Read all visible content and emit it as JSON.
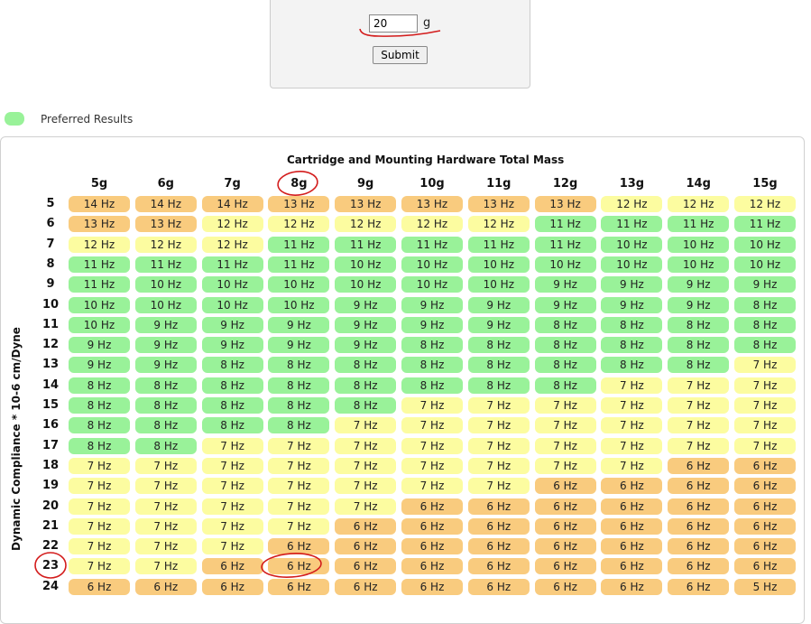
{
  "form": {
    "mass_value": "20",
    "unit": "g",
    "submit_label": "Submit"
  },
  "legend": {
    "label": "Preferred Results",
    "color": "#99f299"
  },
  "table": {
    "title": "Cartridge and Mounting Hardware Total Mass",
    "ylabel": "Dynamic Compliance * 10-6 cm/Dyne",
    "columns": [
      "5g",
      "6g",
      "7g",
      "8g",
      "9g",
      "10g",
      "11g",
      "12g",
      "13g",
      "14g",
      "15g"
    ],
    "rows": [
      {
        "label": "5",
        "values": [
          14,
          14,
          14,
          13,
          13,
          13,
          13,
          13,
          12,
          12,
          12
        ]
      },
      {
        "label": "6",
        "values": [
          13,
          13,
          12,
          12,
          12,
          12,
          12,
          11,
          11,
          11,
          11
        ]
      },
      {
        "label": "7",
        "values": [
          12,
          12,
          12,
          11,
          11,
          11,
          11,
          11,
          10,
          10,
          10
        ]
      },
      {
        "label": "8",
        "values": [
          11,
          11,
          11,
          11,
          10,
          10,
          10,
          10,
          10,
          10,
          10
        ]
      },
      {
        "label": "9",
        "values": [
          11,
          10,
          10,
          10,
          10,
          10,
          10,
          9,
          9,
          9,
          9
        ]
      },
      {
        "label": "10",
        "values": [
          10,
          10,
          10,
          10,
          9,
          9,
          9,
          9,
          9,
          9,
          8
        ]
      },
      {
        "label": "11",
        "values": [
          10,
          9,
          9,
          9,
          9,
          9,
          9,
          8,
          8,
          8,
          8
        ]
      },
      {
        "label": "12",
        "values": [
          9,
          9,
          9,
          9,
          9,
          8,
          8,
          8,
          8,
          8,
          8
        ]
      },
      {
        "label": "13",
        "values": [
          9,
          9,
          8,
          8,
          8,
          8,
          8,
          8,
          8,
          8,
          7
        ]
      },
      {
        "label": "14",
        "values": [
          8,
          8,
          8,
          8,
          8,
          8,
          8,
          8,
          7,
          7,
          7
        ]
      },
      {
        "label": "15",
        "values": [
          8,
          8,
          8,
          8,
          8,
          7,
          7,
          7,
          7,
          7,
          7
        ]
      },
      {
        "label": "16",
        "values": [
          8,
          8,
          8,
          8,
          7,
          7,
          7,
          7,
          7,
          7,
          7
        ]
      },
      {
        "label": "17",
        "values": [
          8,
          8,
          7,
          7,
          7,
          7,
          7,
          7,
          7,
          7,
          7
        ]
      },
      {
        "label": "18",
        "values": [
          7,
          7,
          7,
          7,
          7,
          7,
          7,
          7,
          7,
          6,
          6
        ]
      },
      {
        "label": "19",
        "values": [
          7,
          7,
          7,
          7,
          7,
          7,
          7,
          6,
          6,
          6,
          6
        ]
      },
      {
        "label": "20",
        "values": [
          7,
          7,
          7,
          7,
          7,
          6,
          6,
          6,
          6,
          6,
          6
        ]
      },
      {
        "label": "21",
        "values": [
          7,
          7,
          7,
          7,
          6,
          6,
          6,
          6,
          6,
          6,
          6
        ]
      },
      {
        "label": "22",
        "values": [
          7,
          7,
          7,
          6,
          6,
          6,
          6,
          6,
          6,
          6,
          6
        ]
      },
      {
        "label": "23",
        "values": [
          7,
          7,
          6,
          6,
          6,
          6,
          6,
          6,
          6,
          6,
          6
        ]
      },
      {
        "label": "24",
        "values": [
          6,
          6,
          6,
          6,
          6,
          6,
          6,
          6,
          6,
          6,
          5
        ]
      }
    ],
    "unit_suffix": " Hz",
    "colors": {
      "preferred": "#99f299",
      "caution": "#fcfca0",
      "out_of_range": "#f9cb7e"
    }
  }
}
